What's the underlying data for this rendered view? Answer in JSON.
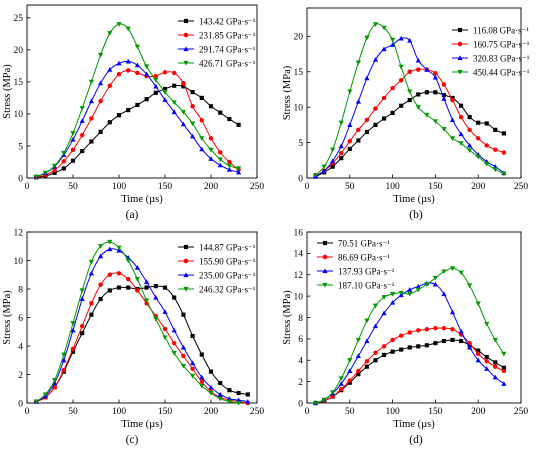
{
  "chart_data": [
    {
      "type": "line",
      "caption": "(a)",
      "xlabel": "Time (µs)",
      "ylabel": "Stress (MPa)",
      "xlim": [
        0,
        250
      ],
      "ylim": [
        0,
        27
      ],
      "xticks": [
        0,
        50,
        100,
        150,
        200,
        250
      ],
      "yticks": [
        0,
        5,
        10,
        15,
        20,
        25
      ],
      "grid": false,
      "legend": "top-right",
      "series": [
        {
          "name": "143.42 GPa·s⁻¹",
          "color": "#000000",
          "marker": "square",
          "x": [
            10,
            20,
            30,
            40,
            50,
            60,
            70,
            80,
            90,
            100,
            110,
            120,
            130,
            140,
            150,
            160,
            170,
            180,
            190,
            200,
            210,
            220,
            230
          ],
          "y": [
            0.1,
            0.3,
            0.8,
            1.5,
            2.7,
            4.2,
            5.7,
            7.2,
            8.7,
            9.8,
            10.6,
            11.4,
            12.3,
            13.3,
            13.9,
            14.4,
            14.3,
            13.4,
            12.5,
            11.2,
            10.2,
            9.2,
            8.3
          ]
        },
        {
          "name": "231.85 GPa·s⁻¹",
          "color": "#ff0000",
          "marker": "circle",
          "x": [
            10,
            20,
            30,
            40,
            50,
            60,
            70,
            80,
            90,
            100,
            110,
            120,
            130,
            140,
            150,
            160,
            170,
            180,
            190,
            200,
            210,
            220,
            230
          ],
          "y": [
            0.1,
            0.5,
            1.2,
            2.6,
            4.4,
            6.7,
            9.3,
            12.0,
            14.4,
            16.2,
            16.8,
            16.4,
            15.9,
            15.9,
            16.5,
            16.4,
            14.8,
            11.2,
            9.0,
            6.2,
            4.0,
            2.5,
            1.3
          ]
        },
        {
          "name": "291.74 GPa·s⁻¹",
          "color": "#0000ff",
          "marker": "triangle-up",
          "x": [
            10,
            20,
            30,
            40,
            50,
            60,
            70,
            80,
            90,
            100,
            110,
            120,
            130,
            140,
            150,
            160,
            170,
            180,
            190,
            200,
            210,
            220,
            230
          ],
          "y": [
            0.2,
            0.8,
            1.8,
            3.6,
            6.0,
            8.9,
            12.0,
            14.8,
            16.9,
            17.9,
            18.2,
            17.6,
            16.2,
            14.3,
            12.2,
            10.3,
            8.4,
            6.5,
            4.5,
            3.0,
            2.0,
            1.3,
            0.9
          ]
        },
        {
          "name": "426.71 GPa·s⁻¹",
          "color": "#009900",
          "marker": "triangle-down",
          "x": [
            10,
            20,
            30,
            40,
            50,
            60,
            70,
            80,
            90,
            100,
            110,
            120,
            130,
            140,
            150,
            160,
            170,
            180,
            190,
            200,
            210,
            220,
            230
          ],
          "y": [
            0.2,
            0.8,
            1.9,
            3.9,
            7.0,
            10.9,
            15.0,
            19.2,
            22.6,
            24.0,
            23.3,
            20.5,
            17.4,
            15.3,
            13.4,
            11.8,
            10.3,
            8.5,
            6.2,
            4.4,
            2.9,
            1.9,
            1.5
          ]
        }
      ]
    },
    {
      "type": "line",
      "caption": "(b)",
      "xlabel": "Time (µs)",
      "ylabel": "Stress (MPa)",
      "xlim": [
        0,
        250
      ],
      "ylim": [
        0,
        24
      ],
      "xticks": [
        0,
        50,
        100,
        150,
        200,
        250
      ],
      "yticks": [
        0,
        5,
        10,
        15,
        20
      ],
      "grid": false,
      "legend": "top-right",
      "series": [
        {
          "name": "116.08 GPa·s⁻¹",
          "color": "#000000",
          "marker": "square",
          "x": [
            10,
            20,
            30,
            40,
            50,
            60,
            70,
            80,
            90,
            100,
            110,
            120,
            130,
            140,
            150,
            160,
            170,
            180,
            190,
            200,
            210,
            220,
            230
          ],
          "y": [
            0.2,
            0.8,
            1.6,
            2.8,
            4.1,
            5.3,
            6.5,
            7.5,
            8.4,
            9.2,
            10.2,
            11.0,
            11.8,
            12.1,
            12.1,
            11.7,
            11.3,
            10.2,
            8.6,
            7.8,
            7.7,
            6.8,
            6.3
          ]
        },
        {
          "name": "160.75 GPa·s⁻¹",
          "color": "#ff0000",
          "marker": "circle",
          "x": [
            10,
            20,
            30,
            40,
            50,
            60,
            70,
            80,
            90,
            100,
            110,
            120,
            130,
            140,
            150,
            160,
            170,
            180,
            190,
            200,
            210,
            220,
            230
          ],
          "y": [
            0.3,
            1.0,
            2.1,
            3.5,
            5.2,
            6.8,
            8.2,
            9.8,
            11.3,
            12.7,
            13.8,
            15.0,
            15.3,
            15.3,
            14.8,
            13.2,
            11.0,
            8.6,
            6.8,
            5.6,
            4.6,
            4.0,
            3.6
          ]
        },
        {
          "name": "320.83 GPa·s⁻¹",
          "color": "#0000ff",
          "marker": "triangle-up",
          "x": [
            10,
            20,
            30,
            40,
            50,
            60,
            70,
            80,
            90,
            100,
            110,
            120,
            130,
            140,
            150,
            160,
            170,
            180,
            190,
            200,
            210,
            220,
            230
          ],
          "y": [
            0.2,
            1.0,
            2.4,
            4.5,
            7.5,
            10.8,
            14.1,
            16.7,
            18.2,
            18.8,
            19.7,
            19.4,
            16.6,
            15.3,
            14.2,
            11.2,
            8.2,
            6.2,
            4.6,
            3.3,
            2.3,
            1.6,
            0.7
          ]
        },
        {
          "name": "450.44 GPa·s⁻¹",
          "color": "#009900",
          "marker": "triangle-down",
          "x": [
            10,
            20,
            30,
            40,
            50,
            60,
            70,
            80,
            90,
            100,
            110,
            120,
            130,
            140,
            150,
            160,
            170,
            180,
            190,
            200,
            210,
            220,
            230
          ],
          "y": [
            0.4,
            1.6,
            4.0,
            7.8,
            12.2,
            16.3,
            19.8,
            21.7,
            21.2,
            19.5,
            15.7,
            12.2,
            10.0,
            8.9,
            8.0,
            6.9,
            5.6,
            4.9,
            3.9,
            3.0,
            2.0,
            1.2,
            0.6
          ]
        }
      ]
    },
    {
      "type": "line",
      "caption": "(c)",
      "xlabel": "Time (µs)",
      "ylabel": "Stress (MPa)",
      "xlim": [
        0,
        250
      ],
      "ylim": [
        0,
        12
      ],
      "xticks": [
        0,
        50,
        100,
        150,
        200,
        250
      ],
      "yticks": [
        0,
        2,
        4,
        6,
        8,
        10,
        12
      ],
      "grid": false,
      "legend": "top-right",
      "series": [
        {
          "name": "144.87 GPa·s⁻¹",
          "color": "#000000",
          "marker": "square",
          "x": [
            10,
            20,
            30,
            40,
            50,
            60,
            70,
            80,
            90,
            100,
            110,
            120,
            130,
            140,
            150,
            160,
            170,
            180,
            190,
            200,
            210,
            220,
            230,
            240
          ],
          "y": [
            0.1,
            0.4,
            1.1,
            2.2,
            3.6,
            4.9,
            6.2,
            7.3,
            7.9,
            8.1,
            8.1,
            8.0,
            8.1,
            8.2,
            8.1,
            7.4,
            6.2,
            4.7,
            3.4,
            2.2,
            1.4,
            0.9,
            0.7,
            0.6
          ]
        },
        {
          "name": "155.90 GPa·s⁻¹",
          "color": "#ff0000",
          "marker": "circle",
          "x": [
            10,
            20,
            30,
            40,
            50,
            60,
            70,
            80,
            90,
            100,
            110,
            120,
            130,
            140,
            150,
            160,
            170,
            180,
            190,
            200,
            210,
            220,
            230,
            240
          ],
          "y": [
            0.1,
            0.4,
            1.1,
            2.3,
            3.8,
            5.4,
            7.0,
            8.3,
            9.0,
            9.1,
            8.7,
            7.9,
            7.0,
            6.1,
            5.2,
            4.2,
            3.3,
            2.4,
            1.5,
            0.8,
            0.4,
            0.2,
            0.1,
            0.0
          ]
        },
        {
          "name": "235.00 GPa·s⁻¹",
          "color": "#0000ff",
          "marker": "triangle-up",
          "x": [
            10,
            20,
            30,
            40,
            50,
            60,
            70,
            80,
            90,
            100,
            110,
            120,
            130,
            140,
            150,
            160,
            170,
            180,
            190,
            200,
            210,
            220,
            230,
            240
          ],
          "y": [
            0.1,
            0.5,
            1.4,
            3.0,
            5.1,
            7.3,
            9.1,
            10.3,
            10.8,
            10.7,
            10.2,
            9.5,
            8.5,
            7.4,
            6.4,
            5.1,
            3.9,
            2.8,
            1.8,
            1.1,
            0.6,
            0.3,
            0.2,
            0.1
          ]
        },
        {
          "name": "246.32 GPa·s⁻¹",
          "color": "#009900",
          "marker": "triangle-down",
          "x": [
            10,
            20,
            30,
            40,
            50,
            60,
            70,
            80,
            90,
            100,
            110,
            120,
            130,
            140,
            150,
            160,
            170,
            180,
            190,
            200,
            210,
            220,
            230
          ],
          "y": [
            0.1,
            0.6,
            1.6,
            3.4,
            5.6,
            7.9,
            9.9,
            11.0,
            11.3,
            10.9,
            10.0,
            8.7,
            7.2,
            5.9,
            4.6,
            3.5,
            2.6,
            1.9,
            1.2,
            0.7,
            0.3,
            0.1,
            0.0
          ]
        }
      ]
    },
    {
      "type": "line",
      "caption": "(d)",
      "xlabel": "Time (µs)",
      "ylabel": "Stress (MPa)",
      "xlim": [
        0,
        250
      ],
      "ylim": [
        0,
        16
      ],
      "xticks": [
        0,
        50,
        100,
        150,
        200,
        250
      ],
      "yticks": [
        0,
        2,
        4,
        6,
        8,
        10,
        12,
        14,
        16
      ],
      "grid": false,
      "legend": "top-left",
      "series": [
        {
          "name": "70.51 GPa·s⁻¹",
          "color": "#000000",
          "marker": "square",
          "x": [
            10,
            20,
            30,
            40,
            50,
            60,
            70,
            80,
            90,
            100,
            110,
            120,
            130,
            140,
            150,
            160,
            170,
            180,
            190,
            200,
            210,
            220,
            230
          ],
          "y": [
            0.0,
            0.2,
            0.6,
            1.2,
            1.9,
            2.7,
            3.4,
            4.0,
            4.5,
            4.8,
            5.0,
            5.2,
            5.3,
            5.4,
            5.6,
            5.8,
            5.9,
            5.8,
            5.4,
            4.9,
            4.3,
            3.8,
            3.3
          ]
        },
        {
          "name": "86.69 GPa·s⁻¹",
          "color": "#ff0000",
          "marker": "circle",
          "x": [
            10,
            20,
            30,
            40,
            50,
            60,
            70,
            80,
            90,
            100,
            110,
            120,
            130,
            140,
            150,
            160,
            170,
            180,
            190,
            200,
            210,
            220,
            230
          ],
          "y": [
            0.0,
            0.2,
            0.6,
            1.3,
            2.1,
            3.0,
            3.9,
            4.7,
            5.3,
            5.9,
            6.3,
            6.6,
            6.8,
            6.9,
            7.0,
            7.0,
            6.9,
            6.4,
            5.6,
            4.6,
            3.9,
            3.4,
            3.0
          ]
        },
        {
          "name": "137.93 GPa·s⁻¹",
          "color": "#0000ff",
          "marker": "triangle-up",
          "x": [
            10,
            20,
            30,
            40,
            50,
            60,
            70,
            80,
            90,
            100,
            110,
            120,
            130,
            140,
            150,
            160,
            170,
            180,
            190,
            200,
            210,
            220,
            230
          ],
          "y": [
            0.0,
            0.3,
            0.9,
            1.8,
            3.0,
            4.4,
            5.8,
            7.2,
            8.4,
            9.4,
            10.1,
            10.6,
            10.9,
            11.2,
            11.1,
            10.2,
            8.5,
            6.7,
            5.2,
            4.0,
            3.2,
            2.4,
            1.8
          ]
        },
        {
          "name": "187.10 GPa·s⁻¹",
          "color": "#009900",
          "marker": "triangle-down",
          "x": [
            10,
            20,
            30,
            40,
            50,
            60,
            70,
            80,
            90,
            100,
            110,
            120,
            130,
            140,
            150,
            160,
            170,
            180,
            190,
            200,
            210,
            220,
            230
          ],
          "y": [
            0.0,
            0.3,
            1.0,
            2.3,
            4.0,
            5.9,
            7.7,
            9.1,
            9.9,
            10.2,
            10.3,
            10.2,
            10.6,
            11.1,
            11.7,
            12.3,
            12.6,
            12.2,
            11.0,
            9.3,
            7.4,
            5.9,
            4.6
          ]
        }
      ]
    }
  ]
}
